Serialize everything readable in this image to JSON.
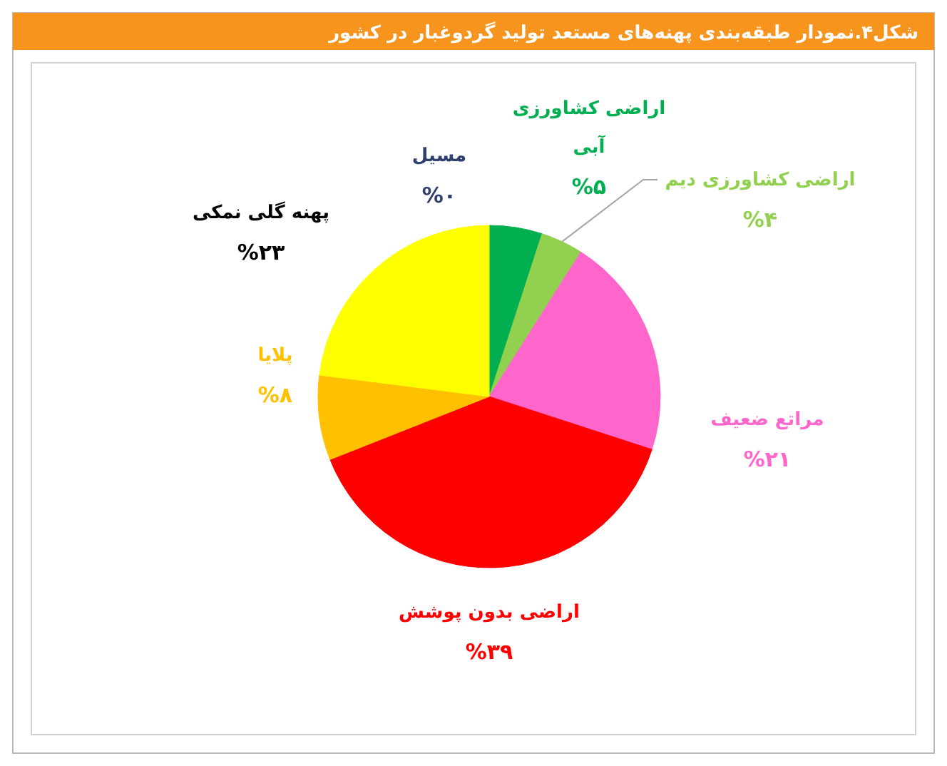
{
  "chart_data": {
    "type": "pie",
    "title": "شکل۴.نمودار طبقه‌بندی پهنه‌های مستعد تولید گردوغبار در کشور",
    "categories": [
      "مسیل",
      "اراضی کشاورزی آبی",
      "اراضی کشاورزی دیم",
      "مراتع ضعیف",
      "اراضی بدون پوشش",
      "پلایا",
      "پهنه گلی نمکی"
    ],
    "values": [
      0,
      5,
      4,
      21,
      39,
      8,
      23
    ],
    "value_labels": [
      "%۰",
      "%۵",
      "%۴",
      "%۲۱",
      "%۳۹",
      "%۸",
      "%۲۳"
    ],
    "colors": [
      "#2f3f6f",
      "#00b050",
      "#92d050",
      "#ff66cc",
      "#ff0000",
      "#ffc000",
      "#ffff00"
    ],
    "legend": false
  }
}
